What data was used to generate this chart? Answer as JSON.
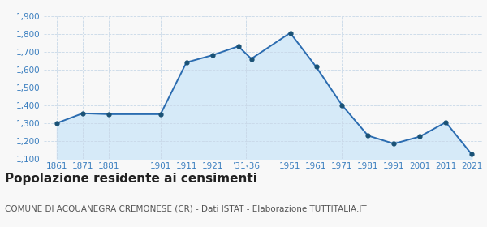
{
  "years": [
    1861,
    1871,
    1881,
    1901,
    1911,
    1921,
    1931,
    1936,
    1951,
    1961,
    1971,
    1981,
    1991,
    2001,
    2011,
    2021
  ],
  "population": [
    1300,
    1355,
    1350,
    1350,
    1640,
    1680,
    1730,
    1660,
    1805,
    1615,
    1400,
    1230,
    1185,
    1225,
    1305,
    1125
  ],
  "ylim": [
    1100,
    1900
  ],
  "yticks": [
    1100,
    1200,
    1300,
    1400,
    1500,
    1600,
    1700,
    1800,
    1900
  ],
  "xtick_positions": [
    1861,
    1871,
    1881,
    1901,
    1911,
    1921,
    1934,
    1951,
    1961,
    1971,
    1981,
    1991,
    2001,
    2011,
    2021
  ],
  "xtick_labels": [
    "1861",
    "1871",
    "1881",
    "1901",
    "1911",
    "1921",
    "’31‹36",
    "1951",
    "1961",
    "1971",
    "1981",
    "1991",
    "2001",
    "2011",
    "2021"
  ],
  "xlim_left": 1856,
  "xlim_right": 2025,
  "line_color": "#2b6cb0",
  "fill_color": "#d6eaf8",
  "marker_color": "#1a5276",
  "bg_color": "#f8f8f8",
  "tick_color": "#3a7ebf",
  "grid_color": "#c8d8e8",
  "title": "Popolazione residente ai censimenti",
  "subtitle": "COMUNE DI ACQUANEGRA CREMONESE (CR) - Dati ISTAT - Elaborazione TUTTITALIA.IT",
  "title_fontsize": 11,
  "subtitle_fontsize": 7.5
}
